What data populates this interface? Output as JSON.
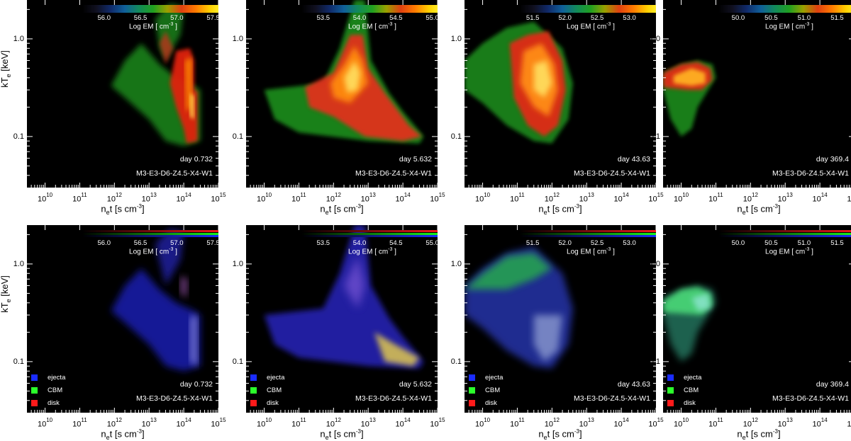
{
  "chart_data": {
    "type": "heatmap",
    "xlabel": "n_et [s cm^-3]",
    "ylabel": "kT_e [keV]",
    "xscale": "log",
    "yscale": "log",
    "xlim": [
      3000000000.0,
      1000000000000000.0
    ],
    "ylim": [
      0.03,
      2.5
    ],
    "x_tick_labels": [
      "10^10",
      "10^11",
      "10^12",
      "10^13",
      "10^14",
      "10^15"
    ],
    "y_tick_labels": [
      "1.0",
      "0.1"
    ],
    "colorbar_label": "Log EM [ cm^-3 ]",
    "model": "M3-E3-D6-Z4.5-X4-W1",
    "legend": [
      "ejecta",
      "CBM",
      "disk"
    ],
    "legend_colors": [
      "#1a2cff",
      "#2bff2b",
      "#ff1a1a"
    ],
    "panels": [
      {
        "day": "day 0.732",
        "cbar_ticks": [
          "56.0",
          "56.5",
          "57.0",
          "57.5"
        ],
        "cbar_range": [
          55.7,
          57.65
        ]
      },
      {
        "day": "day 5.632",
        "cbar_ticks": [
          "53.5",
          "54.0",
          "54.5",
          "55.0"
        ],
        "cbar_range": [
          53.2,
          55.15
        ]
      },
      {
        "day": "day 43.63",
        "cbar_ticks": [
          "51.5",
          "52.0",
          "52.5",
          "53.0"
        ],
        "cbar_range": [
          51.3,
          53.5
        ]
      },
      {
        "day": "day 369.4",
        "cbar_ticks": [
          "50.0",
          "50.5",
          "51.0",
          "51.5"
        ],
        "cbar_range": [
          49.7,
          51.85
        ]
      }
    ]
  }
}
